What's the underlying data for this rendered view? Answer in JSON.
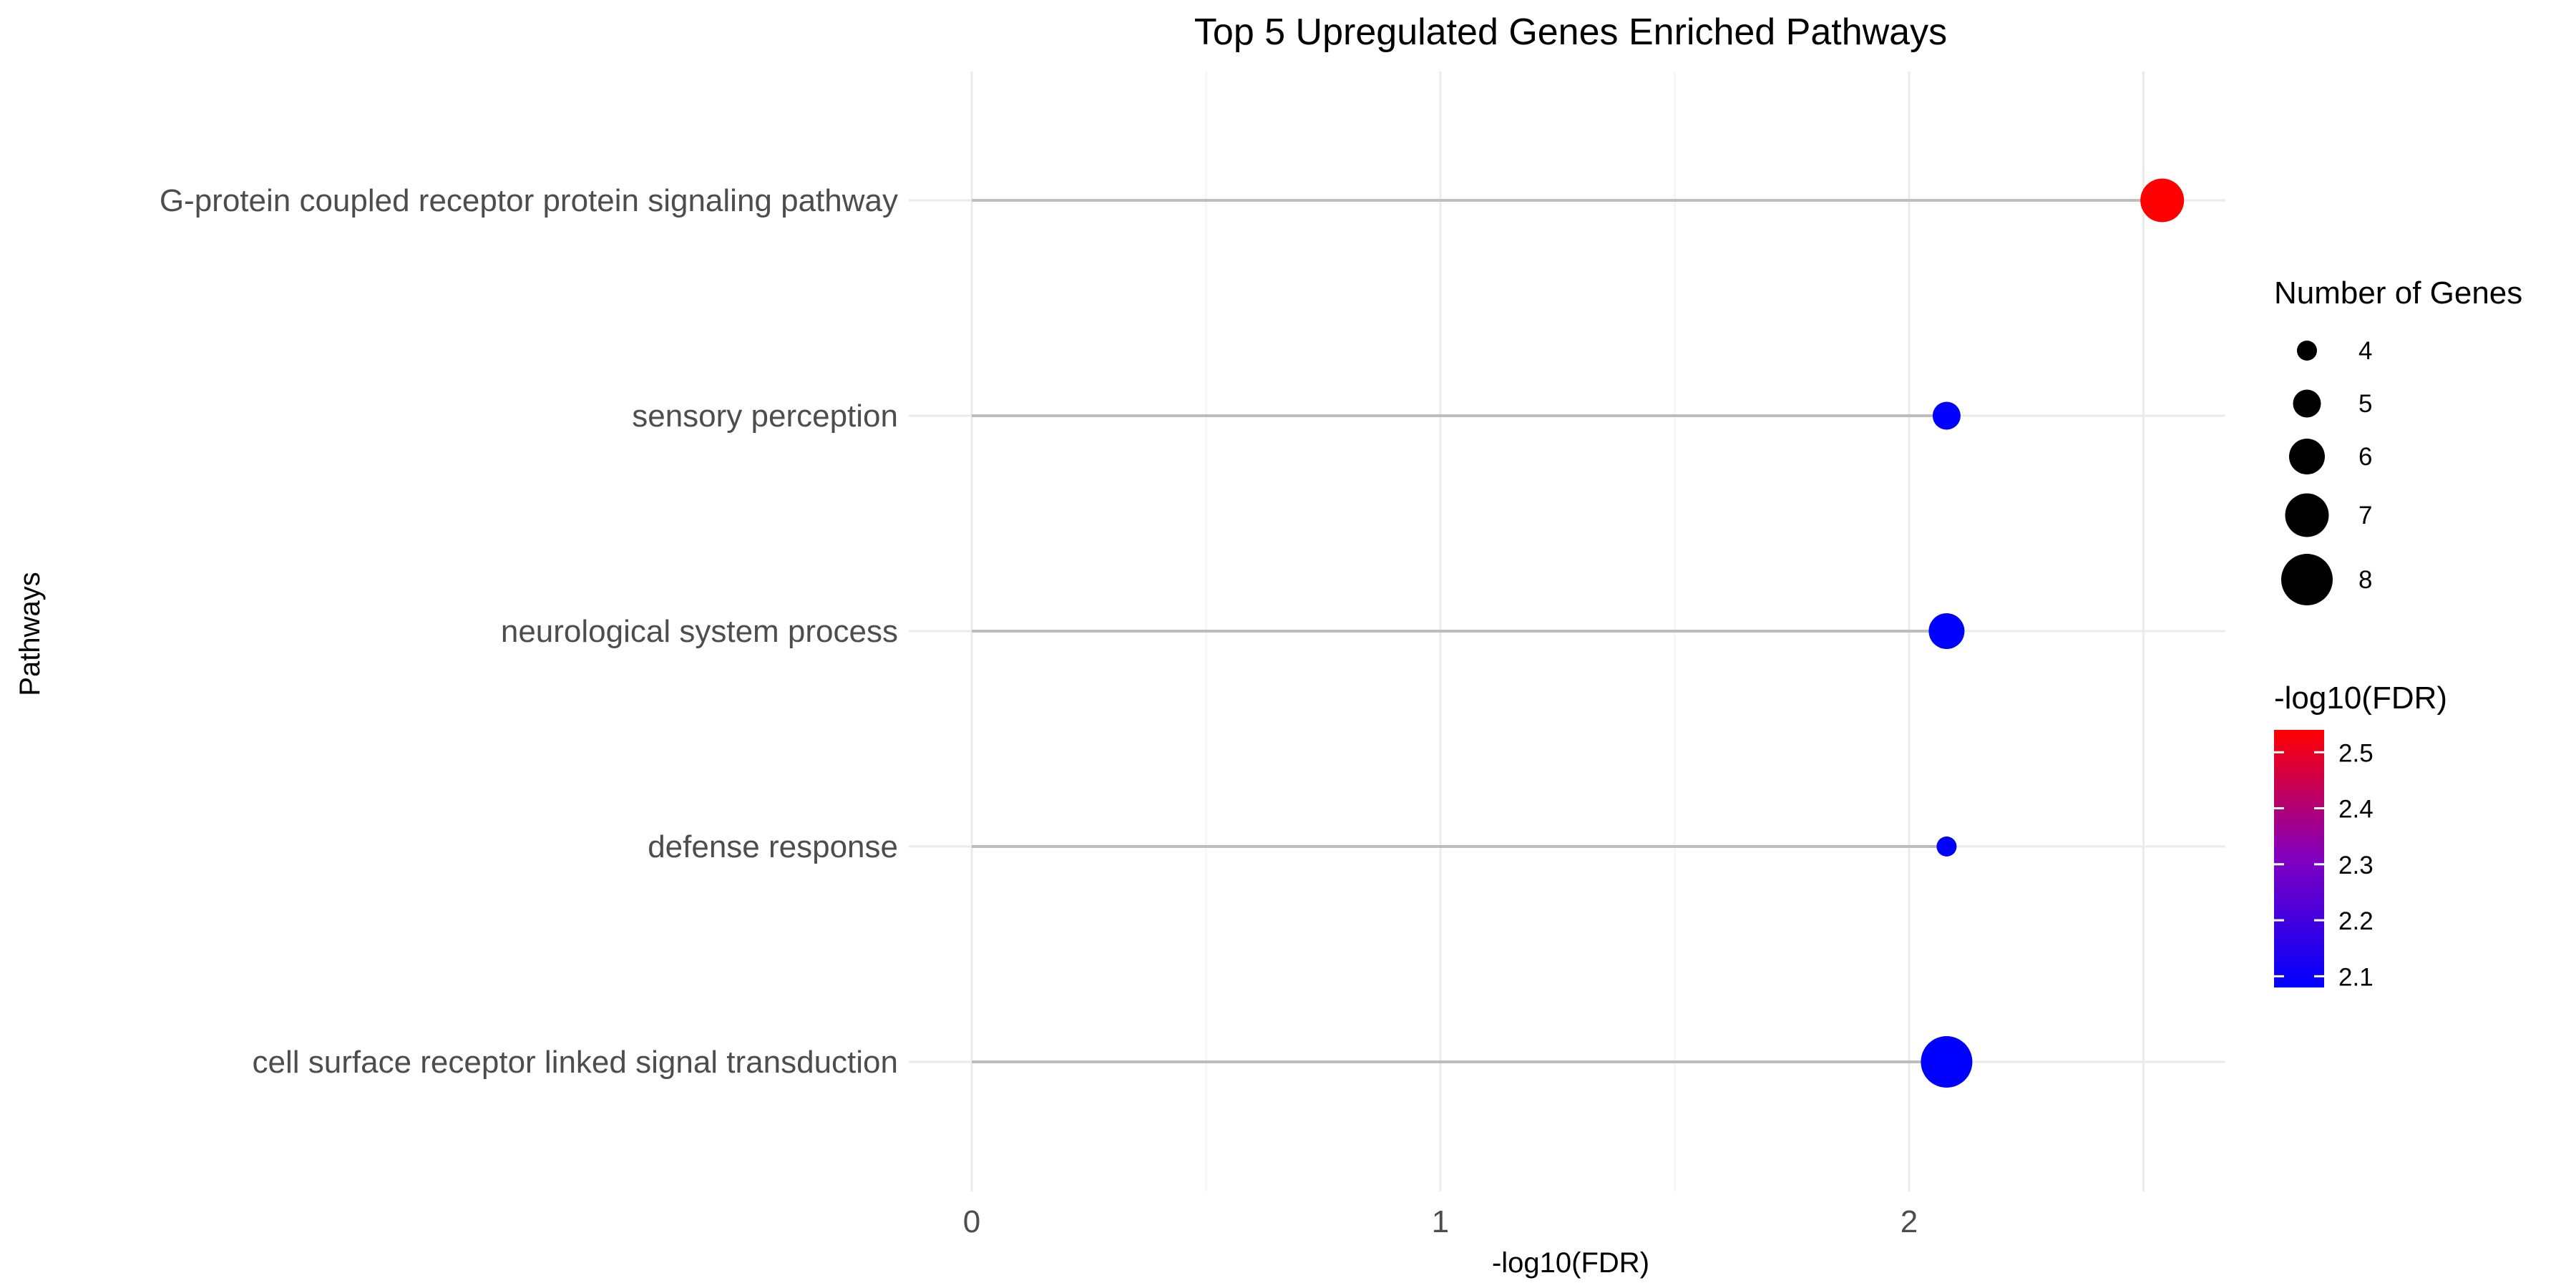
{
  "chart_data": {
    "type": "scatter",
    "title": "Top 5 Upregulated Genes Enriched Pathways",
    "xlabel": "-log10(FDR)",
    "ylabel": "Pathways",
    "xlim": [
      0,
      2.6
    ],
    "x_ticks": [
      0,
      1,
      2
    ],
    "x_tick_labels": [
      "0",
      "1",
      "2"
    ],
    "grid": true,
    "categories": [
      "G-protein coupled receptor protein signaling pathway",
      "sensory perception",
      "neurological system process",
      "defense response",
      "cell surface receptor linked signal transduction"
    ],
    "x": [
      2.54,
      2.08,
      2.08,
      2.08,
      2.08
    ],
    "gene_counts": [
      7,
      5,
      6,
      4,
      8
    ],
    "size_legend": {
      "title": "Number of Genes",
      "values": [
        4,
        5,
        6,
        7,
        8
      ],
      "labels": [
        "4",
        "5",
        "6",
        "7",
        "8"
      ],
      "placement": "right"
    },
    "color_legend": {
      "title": "-log10(FDR)",
      "low_color": "#0000ff",
      "high_color": "#ff0000",
      "range": [
        2.08,
        2.54
      ],
      "ticks": [
        2.1,
        2.2,
        2.3,
        2.4,
        2.5
      ],
      "tick_labels": [
        "2.1",
        "2.2",
        "2.3",
        "2.4",
        "2.5"
      ],
      "placement": "right"
    }
  }
}
